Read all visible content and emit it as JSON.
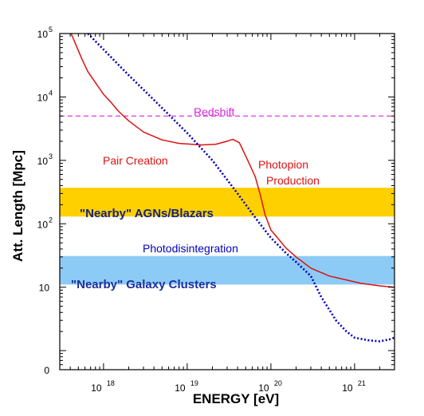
{
  "chart_data": {
    "type": "line",
    "xlabel": "ENERGY  [eV]",
    "ylabel": "Att. Length  [Mpc]",
    "x_scale": "log",
    "y_scale": "log",
    "xlim": [
      3e+17,
      3e+21
    ],
    "ylim": [
      0.5,
      100000
    ],
    "x_ticks": [
      {
        "base": "10",
        "exp": "18",
        "value": 1e+18
      },
      {
        "base": "10",
        "exp": "19",
        "value": 1e+19
      },
      {
        "base": "10",
        "exp": "20",
        "value": 1e+20
      },
      {
        "base": "10",
        "exp": "21",
        "value": 1e+21
      }
    ],
    "y_ticks": [
      {
        "base": "0",
        "exp": "",
        "value": 0.5
      },
      {
        "base": "10",
        "exp": "",
        "value": 10
      },
      {
        "base": "10",
        "exp": "2",
        "value": 100
      },
      {
        "base": "10",
        "exp": "3",
        "value": 1000
      },
      {
        "base": "10",
        "exp": "4",
        "value": 10000
      },
      {
        "base": "10",
        "exp": "5",
        "value": 100000
      }
    ],
    "grid": false,
    "colors": {
      "proton": "#dd1111",
      "photodisintegration": "#0000bb",
      "redshift": "#dd22dd",
      "agn_band": "#ffd000",
      "cluster_band": "#8ccbf5",
      "cluster_text": "#1c2fa0",
      "agn_text": "#14237a"
    },
    "bands": [
      {
        "label": "\"Nearby\" AGNs/Blazars",
        "y_low": 130,
        "y_high": 370,
        "color": "#ffd000"
      },
      {
        "label": "\"Nearby\" Galaxy Clusters",
        "y_low": 11,
        "y_high": 31,
        "color": "#8ccbf5"
      }
    ],
    "hlines": [
      {
        "name": "Redshift",
        "y": 5000,
        "style": "dashed",
        "color": "#dd22dd"
      }
    ],
    "annotations": {
      "redshift": "Redshift",
      "pair_creation": "Pair Creation",
      "photopion_1": "Photopion",
      "photopion_2": "Production",
      "photodisintegration": "Photodisintegration"
    },
    "series": [
      {
        "label": "Pair Creation / Photopion Production",
        "style": "solid",
        "color": "#dd1111",
        "x": [
          4.1e+17,
          4.6e+17,
          5.5e+17,
          6.5e+17,
          8.2e+17,
          1e+18,
          1.25e+18,
          1.5e+18,
          2e+18,
          3e+18,
          5e+18,
          8e+18,
          1.5e+19,
          2.2e+19,
          3e+19,
          3.5e+19,
          4.2e+19,
          5.2e+19,
          6.5e+19,
          7.5e+19,
          8.5e+19,
          1e+20,
          1.2e+20,
          1.5e+20,
          2e+20,
          3e+20,
          5e+20,
          8e+20,
          1.2e+21,
          2e+21,
          3e+21
        ],
        "y": [
          100000,
          70000,
          40000,
          25000,
          16000,
          11000,
          8000,
          6000,
          4200,
          2800,
          2100,
          1850,
          1750,
          1800,
          2000,
          2150,
          1900,
          1050,
          550,
          280,
          140,
          80,
          60,
          42,
          30,
          20,
          15,
          13,
          11.5,
          10.5,
          10
        ]
      },
      {
        "label": "Photodisintegration",
        "style": "dotted",
        "color": "#0000bb",
        "x": [
          6.5e+17,
          1e+18,
          2e+18,
          4e+18,
          1e+19,
          2e+19,
          4e+19,
          7e+19,
          1e+20,
          1.5e+20,
          2e+20,
          3e+20,
          4e+20,
          6e+20,
          8e+20,
          1e+21,
          1.5e+21,
          2e+21,
          2.6e+21,
          3e+21
        ],
        "y": [
          100000,
          56000,
          22000,
          9000,
          2700,
          1000,
          300,
          110,
          60,
          35,
          25,
          15,
          7,
          3,
          2.0,
          1.6,
          1.45,
          1.4,
          1.5,
          1.6
        ]
      }
    ]
  }
}
